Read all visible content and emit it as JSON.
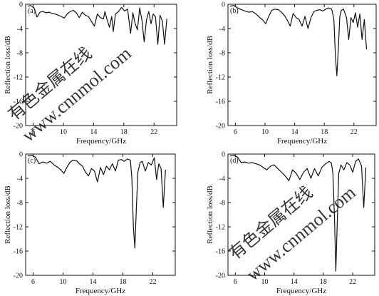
{
  "chart_data": [
    {
      "type": "line",
      "panel_label": "(a)",
      "xlabel": "Frequency/GHz",
      "ylabel": "Reflection loss/dB",
      "xlim": [
        5,
        25
      ],
      "ylim": [
        -20,
        0
      ],
      "xticks": [
        6,
        10,
        14,
        18,
        22
      ],
      "yticks": [
        -20,
        -16,
        -12,
        -8,
        -4,
        0
      ],
      "grid": false,
      "series": [
        {
          "x": [
            5.3,
            5.7,
            6.1,
            6.5,
            6.9,
            7.3,
            7.7,
            8.1,
            8.5,
            8.9,
            9.3,
            9.7,
            10.1,
            10.5,
            10.9,
            11.3,
            11.7,
            12.1,
            12.5,
            12.9,
            13.3,
            13.7,
            14.1,
            14.5,
            14.9,
            15.3,
            15.5,
            15.8,
            16.1,
            16.4,
            16.6,
            16.9,
            17.3,
            17.7,
            18.1,
            18.5,
            18.9,
            19.2,
            19.5,
            19.8,
            20.1,
            20.4,
            20.7,
            21.0,
            21.3,
            21.6,
            21.9,
            22.2,
            22.5,
            22.8,
            23.1,
            23.4,
            23.7
          ],
          "y": [
            -0.3,
            -0.2,
            -0.6,
            -2.1,
            -1.3,
            -1.2,
            -1.4,
            -1.3,
            -1.5,
            -1.6,
            -1.8,
            -2.0,
            -2.3,
            -1.6,
            -1.2,
            -1.0,
            -1.4,
            -2.2,
            -1.3,
            -1.8,
            -2.0,
            -2.8,
            -3.6,
            -1.6,
            -2.2,
            -2.4,
            -1.2,
            -2.6,
            -3.8,
            -2.0,
            -4.5,
            -1.6,
            -1.2,
            -0.5,
            -1.1,
            -0.8,
            -4.8,
            -1.4,
            -3.2,
            -4.2,
            -0.6,
            -2.6,
            -6.2,
            -2.6,
            -1.2,
            -3.2,
            -1.6,
            -2.1,
            -6.6,
            -1.8,
            -2.8,
            -6.6,
            -2.4
          ]
        }
      ]
    },
    {
      "type": "line",
      "panel_label": "(b)",
      "xlabel": "Frequency/GHz",
      "ylabel": "Reflection loss/dB",
      "xlim": [
        5,
        25
      ],
      "ylim": [
        -20,
        0
      ],
      "xticks": [
        6,
        10,
        14,
        18,
        22
      ],
      "yticks": [
        -20,
        -16,
        -12,
        -8,
        -4,
        0
      ],
      "grid": false,
      "series": [
        {
          "x": [
            5.3,
            5.8,
            6.3,
            6.8,
            7.3,
            7.8,
            8.3,
            8.8,
            9.3,
            9.7,
            10.1,
            10.5,
            10.9,
            11.3,
            11.8,
            12.2,
            12.6,
            13.0,
            13.4,
            13.8,
            14.2,
            14.6,
            15.0,
            15.4,
            15.8,
            16.2,
            16.6,
            17.0,
            17.4,
            17.8,
            18.2,
            18.6,
            19.0,
            19.3,
            19.5,
            19.7,
            19.9,
            20.1,
            20.3,
            20.6,
            21.0,
            21.3,
            21.6,
            21.9,
            22.2,
            22.5,
            22.8,
            23.1,
            23.4,
            23.7
          ],
          "y": [
            -0.3,
            -0.2,
            -0.6,
            -0.9,
            -1.1,
            -1.3,
            -1.2,
            -1.6,
            -2.2,
            -2.6,
            -3.2,
            -2.0,
            -1.0,
            -0.8,
            -0.9,
            -1.3,
            -1.8,
            -2.6,
            -3.6,
            -1.5,
            -2.2,
            -2.5,
            -3.6,
            -2.0,
            -4.0,
            -2.2,
            -1.2,
            -1.0,
            -0.9,
            -1.1,
            -0.8,
            -0.6,
            -0.8,
            -2.5,
            -8.5,
            -11.8,
            -7.0,
            -2.0,
            -1.0,
            -0.8,
            -2.2,
            -5.8,
            -2.2,
            -3.0,
            -1.4,
            -3.8,
            -1.6,
            -5.8,
            -2.5,
            -7.4
          ]
        }
      ]
    },
    {
      "type": "line",
      "panel_label": "(c)",
      "xlabel": "Frequency/GHz",
      "ylabel": "Reflection loss/dB",
      "xlim": [
        5,
        25
      ],
      "ylim": [
        -20,
        0
      ],
      "xticks": [
        6,
        10,
        14,
        18,
        22
      ],
      "yticks": [
        -20,
        -16,
        -12,
        -8,
        -4,
        0
      ],
      "grid": false,
      "series": [
        {
          "x": [
            5.3,
            5.8,
            6.3,
            6.8,
            7.3,
            7.8,
            8.3,
            8.8,
            9.3,
            9.7,
            10.1,
            10.5,
            10.9,
            11.3,
            11.8,
            12.2,
            12.6,
            13.0,
            13.4,
            13.8,
            14.2,
            14.6,
            15.0,
            15.4,
            15.8,
            16.2,
            16.6,
            17.0,
            17.4,
            17.8,
            18.2,
            18.6,
            19.0,
            19.2,
            19.4,
            19.6,
            19.8,
            20.0,
            20.3,
            20.6,
            21.0,
            21.4,
            21.8,
            22.2,
            22.5,
            22.8,
            23.1,
            23.4,
            23.7
          ],
          "y": [
            -0.3,
            -0.2,
            -0.5,
            -1.6,
            -1.3,
            -1.5,
            -1.2,
            -1.8,
            -2.2,
            -2.6,
            -3.2,
            -2.2,
            -1.4,
            -1.0,
            -1.1,
            -1.6,
            -2.0,
            -3.0,
            -3.6,
            -2.4,
            -2.8,
            -4.6,
            -2.2,
            -3.4,
            -2.0,
            -2.6,
            -1.6,
            -2.8,
            -1.0,
            -0.9,
            -1.2,
            -0.8,
            -1.0,
            -4.0,
            -12.0,
            -15.5,
            -9.0,
            -3.0,
            -1.4,
            -1.2,
            -2.8,
            -1.4,
            -1.8,
            -0.6,
            -4.2,
            -1.6,
            -2.4,
            -8.8,
            -2.6
          ]
        }
      ]
    },
    {
      "type": "line",
      "panel_label": "(d)",
      "xlabel": "Frequency/GHz",
      "ylabel": "Reflection loss/dB",
      "xlim": [
        5,
        25
      ],
      "ylim": [
        -20,
        0
      ],
      "xticks": [
        6,
        10,
        14,
        18,
        22
      ],
      "yticks": [
        -20,
        -16,
        -12,
        -8,
        -4,
        0
      ],
      "grid": false,
      "series": [
        {
          "x": [
            5.3,
            5.8,
            6.3,
            6.8,
            7.3,
            7.8,
            8.3,
            8.8,
            9.3,
            9.8,
            10.3,
            10.8,
            11.3,
            11.8,
            12.3,
            12.8,
            13.3,
            13.8,
            14.3,
            14.8,
            15.3,
            15.8,
            16.3,
            16.8,
            17.3,
            17.8,
            18.3,
            18.8,
            19.1,
            19.3,
            19.5,
            19.7,
            19.9,
            20.1,
            20.4,
            20.8,
            21.2,
            21.6,
            22.0,
            22.4,
            22.8,
            23.2,
            23.5,
            23.8
          ],
          "y": [
            -0.3,
            -0.2,
            -0.5,
            -1.4,
            -1.3,
            -1.5,
            -1.4,
            -1.6,
            -1.8,
            -2.2,
            -2.6,
            -2.0,
            -1.8,
            -2.4,
            -3.0,
            -3.6,
            -4.4,
            -2.6,
            -3.2,
            -4.2,
            -3.0,
            -2.4,
            -4.0,
            -2.4,
            -3.6,
            -2.2,
            -1.6,
            -1.2,
            -1.5,
            -3.2,
            -10.0,
            -19.3,
            -11.0,
            -3.2,
            -1.8,
            -2.6,
            -1.4,
            -1.8,
            -3.0,
            -1.2,
            -0.8,
            -2.0,
            -8.8,
            -2.2
          ]
        }
      ]
    }
  ],
  "watermarks": [
    {
      "text": "有色金属在线"
    },
    {
      "text": "www.cnnmol.com"
    },
    {
      "text": "有色金属在线"
    },
    {
      "text": "www.cnnmol.com"
    }
  ],
  "colors": {
    "line": "#111111",
    "axis": "#111111",
    "watermark": "#c8c8c8"
  }
}
